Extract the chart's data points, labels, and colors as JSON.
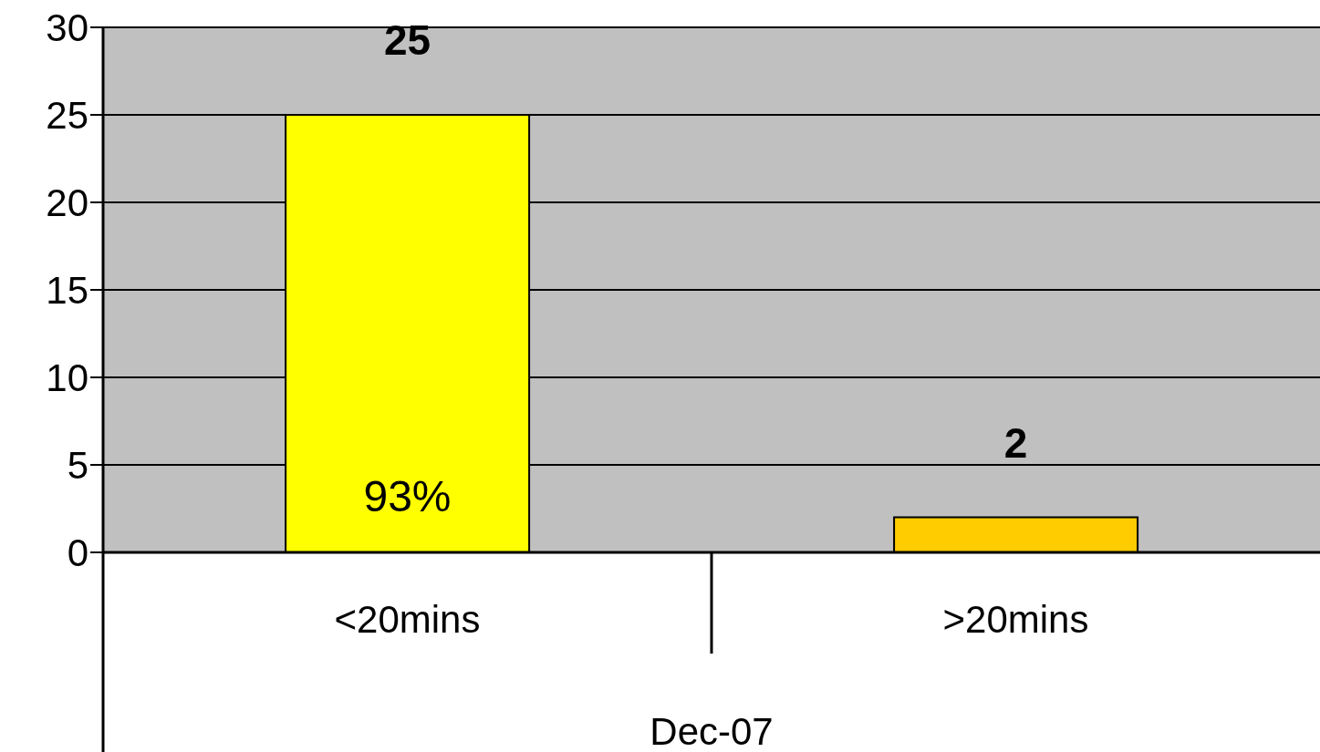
{
  "chart_data": {
    "type": "bar",
    "xlabel": "Dec-07",
    "categories": [
      "<20mins",
      ">20mins"
    ],
    "values": [
      25,
      2
    ],
    "colors": [
      "#ffff00",
      "#ffcc00"
    ],
    "ylim": [
      0,
      30
    ],
    "yticks": [
      0,
      5,
      10,
      15,
      20,
      25,
      30
    ],
    "grid": "y",
    "data_labels": true,
    "annotations": [
      "93%"
    ]
  }
}
